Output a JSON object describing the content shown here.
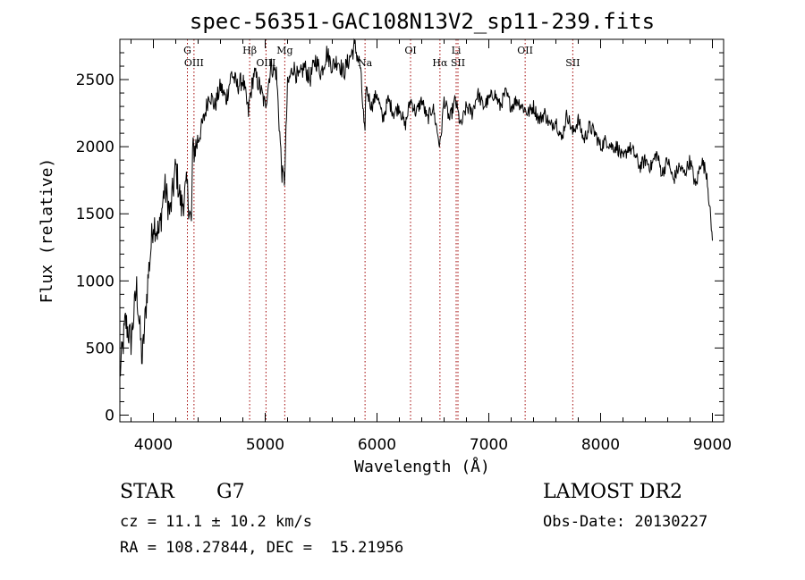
{
  "chart_data": {
    "type": "line",
    "title": "spec-56351-GAC108N13V2_sp11-239.fits",
    "xlabel": "Wavelength (Å)",
    "ylabel": "Flux (relative)",
    "xlim": [
      3700,
      9100
    ],
    "ylim": [
      -50,
      2800
    ],
    "xticks": [
      4000,
      5000,
      6000,
      7000,
      8000,
      9000
    ],
    "yticks": [
      0,
      500,
      1000,
      1500,
      2000,
      2500
    ],
    "grid": false,
    "series": [
      {
        "x": [
          3700,
          3750,
          3800,
          3850,
          3900,
          3950,
          4000,
          4050,
          4100,
          4150,
          4200,
          4250,
          4300,
          4340,
          4350,
          4400,
          4450,
          4500,
          4550,
          4600,
          4650,
          4700,
          4750,
          4800,
          4850,
          4861,
          4900,
          4950,
          5000,
          5050,
          5100,
          5150,
          5172,
          5200,
          5250,
          5300,
          5350,
          5400,
          5450,
          5500,
          5550,
          5600,
          5650,
          5700,
          5750,
          5800,
          5850,
          5893,
          5900,
          5950,
          6000,
          6050,
          6100,
          6150,
          6200,
          6250,
          6300,
          6350,
          6400,
          6450,
          6500,
          6563,
          6600,
          6650,
          6700,
          6750,
          6800,
          6850,
          6900,
          6950,
          7000,
          7050,
          7100,
          7150,
          7200,
          7250,
          7300,
          7350,
          7400,
          7450,
          7500,
          7550,
          7600,
          7650,
          7700,
          7750,
          7800,
          7850,
          7900,
          7950,
          8000,
          8050,
          8100,
          8150,
          8200,
          8250,
          8300,
          8350,
          8400,
          8450,
          8500,
          8550,
          8600,
          8650,
          8700,
          8750,
          8800,
          8850,
          8900,
          8950,
          9000
        ],
        "values": [
          300,
          700,
          550,
          950,
          400,
          1000,
          1450,
          1350,
          1700,
          1500,
          1850,
          1550,
          1700,
          1400,
          1950,
          2050,
          2200,
          2400,
          2300,
          2450,
          2350,
          2550,
          2450,
          2500,
          2250,
          2350,
          2550,
          2450,
          2300,
          2600,
          2550,
          1800,
          1750,
          2450,
          2600,
          2500,
          2600,
          2500,
          2650,
          2550,
          2700,
          2600,
          2650,
          2550,
          2650,
          2750,
          2600,
          2050,
          2450,
          2300,
          2400,
          2200,
          2350,
          2250,
          2300,
          2150,
          2350,
          2250,
          2350,
          2200,
          2300,
          2000,
          2350,
          2200,
          2350,
          2150,
          2300,
          2250,
          2400,
          2300,
          2350,
          2400,
          2300,
          2400,
          2300,
          2350,
          2300,
          2250,
          2300,
          2200,
          2250,
          2150,
          2200,
          2050,
          2250,
          2100,
          2200,
          2050,
          2150,
          2100,
          2000,
          2050,
          2000,
          2000,
          1900,
          2000,
          1950,
          1850,
          1900,
          1850,
          1950,
          1800,
          1900,
          1750,
          1850,
          1800,
          1900,
          1700,
          1900,
          1800,
          1300
        ]
      }
    ],
    "lines": [
      {
        "x": 4304,
        "label": "G"
      },
      {
        "x": 4363,
        "label": "OIII"
      },
      {
        "x": 4861,
        "label": "Hβ"
      },
      {
        "x": 5007,
        "label": "OIII"
      },
      {
        "x": 5175,
        "label": "Mg"
      },
      {
        "x": 5893,
        "label": "Na"
      },
      {
        "x": 6300,
        "label": "OI"
      },
      {
        "x": 6563,
        "label": "Hα"
      },
      {
        "x": 6708,
        "label": "Li"
      },
      {
        "x": 6724,
        "label": "SII"
      },
      {
        "x": 7325,
        "label": "OII"
      },
      {
        "x": 7751,
        "label": "SII"
      }
    ]
  },
  "info": {
    "class": "STAR",
    "subclass": "G7",
    "survey": "LAMOST DR2",
    "cz": "cz = 11.1 ± 10.2 km/s",
    "obs_date": "Obs-Date: 20130227",
    "radec": "RA = 108.27844, DEC =  15.21956"
  }
}
